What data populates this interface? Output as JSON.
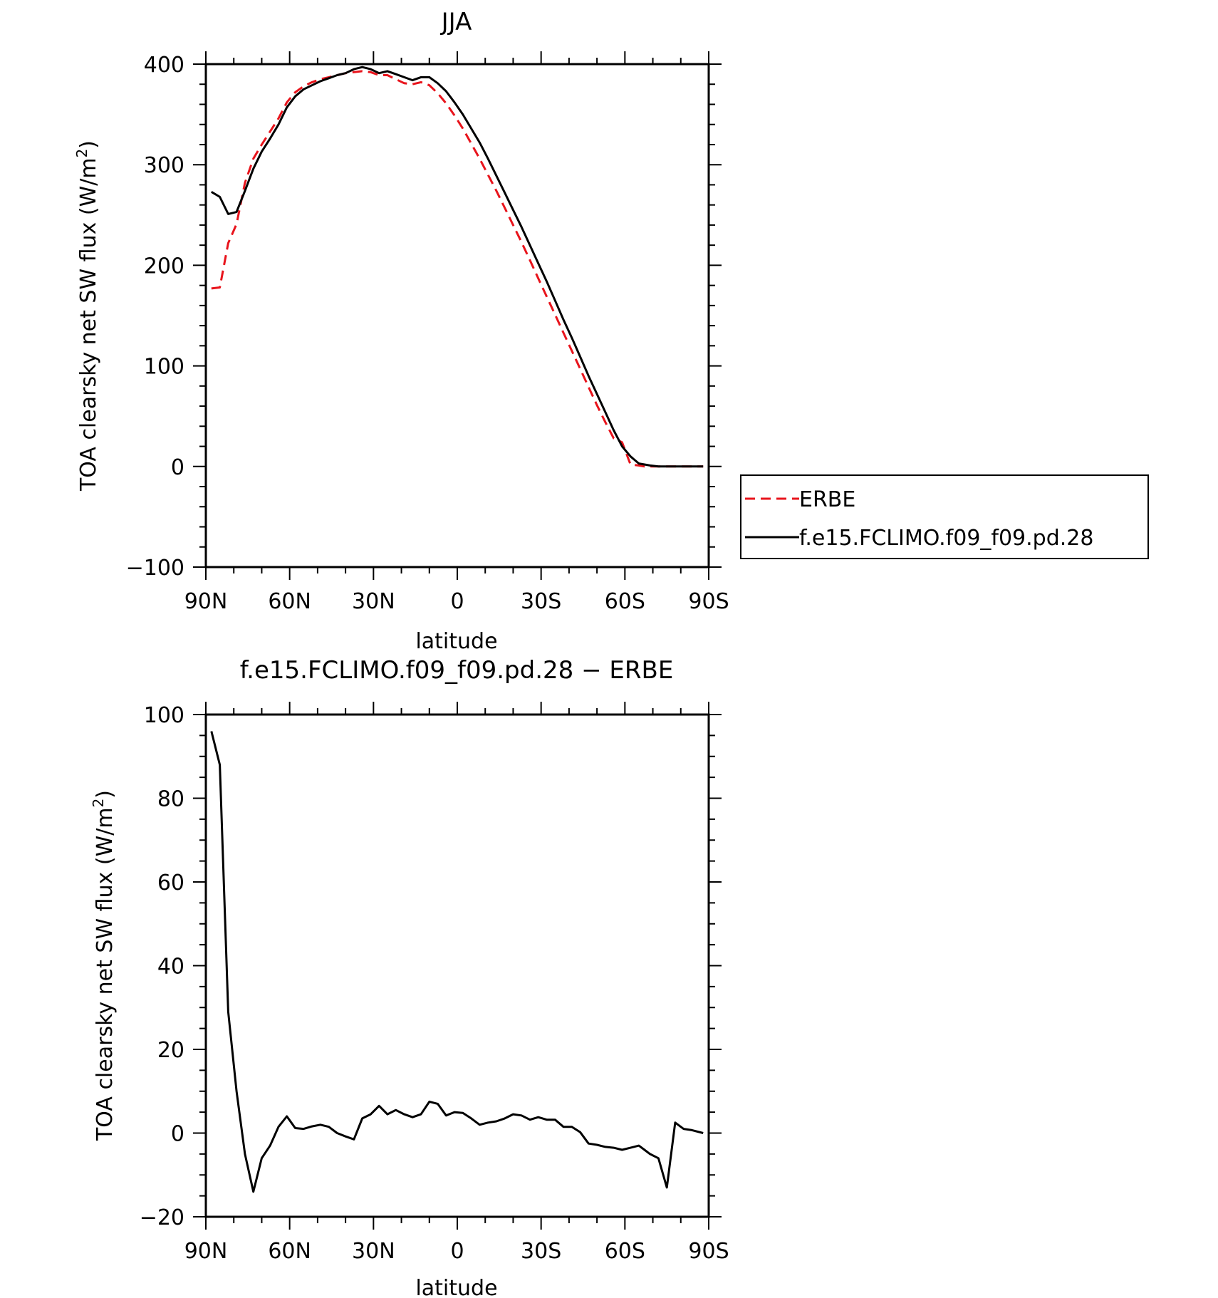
{
  "chart_data": [
    {
      "type": "line",
      "title": "JJA",
      "xlabel": "latitude",
      "ylabel_main": "TOA clearsky net SW flux (W/m",
      "ylabel_sup": "2",
      "ylabel_close": ")",
      "xlim": [
        90,
        -90
      ],
      "ylim": [
        -100,
        400
      ],
      "x_ticks": [
        90,
        60,
        30,
        0,
        -30,
        -60,
        -90
      ],
      "x_tick_labels": [
        "90N",
        "60N",
        "30N",
        "0",
        "30S",
        "60S",
        "90S"
      ],
      "y_ticks": [
        -100,
        0,
        100,
        200,
        300,
        400
      ],
      "y_tick_labels": [
        "−100",
        "0",
        "100",
        "200",
        "300",
        "400"
      ],
      "legend": "right",
      "series": [
        {
          "name": "ERBE",
          "color": "#e8141c",
          "dash": "dashed",
          "x": [
            88,
            85,
            82,
            79,
            76,
            73,
            70,
            67,
            64,
            61,
            58,
            55,
            52,
            49,
            46,
            43,
            40,
            37,
            34,
            31,
            28,
            25,
            22,
            19,
            16,
            13,
            10,
            7,
            4,
            1,
            -2,
            -5,
            -8,
            -11,
            -14,
            -17,
            -20,
            -23,
            -26,
            -29,
            -32,
            -35,
            -38,
            -41,
            -44,
            -47,
            -50,
            -53,
            -56,
            -59,
            -62,
            -65,
            -67,
            -69,
            -72,
            -75,
            -78,
            -81,
            -84,
            -88
          ],
          "y": [
            177,
            178,
            222,
            241,
            282,
            306,
            320,
            333,
            346,
            362,
            372,
            378,
            382,
            385,
            387,
            389,
            391,
            392,
            393,
            392,
            389,
            389,
            385,
            381,
            380,
            382,
            379,
            371,
            361,
            349,
            336,
            321,
            306,
            290,
            274,
            257,
            240,
            223,
            205,
            187,
            169,
            151,
            133,
            115,
            97,
            79,
            61,
            44,
            28,
            24,
            2,
            1,
            0,
            0,
            0,
            0,
            0,
            0,
            0,
            0
          ]
        },
        {
          "name": "f.e15.FCLIMO.f09_f09.pd.28",
          "color": "#000000",
          "dash": "solid",
          "x": [
            88,
            85,
            82,
            79,
            76,
            73,
            70,
            67,
            64,
            61,
            58,
            55,
            52,
            49,
            46,
            43,
            40,
            37,
            34,
            31,
            28,
            25,
            22,
            19,
            16,
            13,
            10,
            7,
            4,
            1,
            -2,
            -5,
            -8,
            -11,
            -14,
            -17,
            -20,
            -23,
            -26,
            -29,
            -32,
            -35,
            -38,
            -41,
            -44,
            -47,
            -50,
            -53,
            -56,
            -59,
            -62,
            -65,
            -67,
            -69,
            -72,
            -75,
            -78,
            -81,
            -84,
            -88
          ],
          "y": [
            273,
            268,
            251,
            253,
            274,
            296,
            313,
            326,
            340,
            357,
            368,
            375,
            379,
            383,
            386,
            389,
            391,
            395,
            397,
            395,
            391,
            393,
            390,
            387,
            384,
            387,
            387,
            381,
            373,
            362,
            350,
            336,
            322,
            306,
            289,
            272,
            255,
            238,
            220,
            202,
            184,
            165,
            146,
            128,
            109,
            90,
            72,
            54,
            36,
            20,
            10,
            3,
            2,
            1,
            0,
            0,
            0,
            0,
            0,
            0
          ]
        }
      ]
    },
    {
      "type": "line",
      "title": "f.e15.FCLIMO.f09_f09.pd.28 − ERBE",
      "xlabel": "latitude",
      "ylabel_main": "TOA clearsky net SW flux (W/m",
      "ylabel_sup": "2",
      "ylabel_close": ")",
      "xlim": [
        90,
        -90
      ],
      "ylim": [
        -20,
        100
      ],
      "x_ticks": [
        90,
        60,
        30,
        0,
        -30,
        -60,
        -90
      ],
      "x_tick_labels": [
        "90N",
        "60N",
        "30N",
        "0",
        "30S",
        "60S",
        "90S"
      ],
      "y_ticks": [
        -20,
        0,
        20,
        40,
        60,
        80,
        100
      ],
      "y_tick_labels": [
        "−20",
        "0",
        "20",
        "40",
        "60",
        "80",
        "100"
      ],
      "series": [
        {
          "color": "#000000",
          "dash": "solid",
          "x": [
            88,
            85,
            82,
            79,
            76,
            73,
            70,
            67,
            64,
            61,
            58,
            55,
            52,
            49,
            46,
            43,
            40,
            37,
            34,
            31,
            28,
            25,
            22,
            19,
            16,
            13,
            10,
            7,
            4,
            1,
            -2,
            -5,
            -8,
            -11,
            -14,
            -17,
            -20,
            -23,
            -26,
            -29,
            -32,
            -35,
            -38,
            -41,
            -44,
            -47,
            -50,
            -53,
            -56,
            -59,
            -62,
            -65,
            -67,
            -69,
            -72,
            -75,
            -78,
            -81,
            -84,
            -88
          ],
          "y": [
            96,
            88,
            29,
            10,
            -5,
            -14,
            -6,
            -3,
            1.5,
            4,
            1.2,
            1,
            1.6,
            2,
            1.5,
            0,
            -0.8,
            -1.5,
            3.5,
            4.5,
            6.5,
            4.5,
            5.5,
            4.5,
            3.8,
            4.5,
            7.5,
            7,
            4.2,
            5,
            4.8,
            3.5,
            2,
            2.5,
            2.8,
            3.5,
            4.5,
            4.2,
            3.2,
            3.8,
            3.2,
            3.2,
            1.5,
            1.5,
            0.2,
            -2.5,
            -2.8,
            -3.3,
            -3.5,
            -4,
            -3.5,
            -3,
            -4,
            -5,
            -6,
            -13,
            2.5,
            1,
            0.7,
            0
          ]
        }
      ]
    }
  ]
}
